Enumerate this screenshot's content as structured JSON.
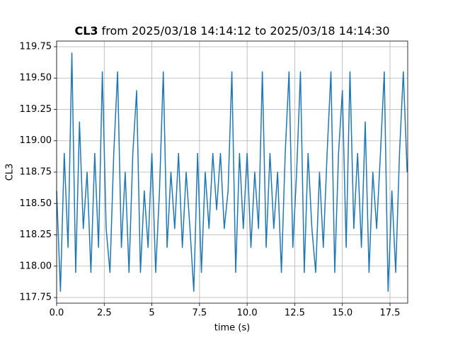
{
  "chart_data": {
    "type": "line",
    "title": "CL3",
    "title_suffix": "from 2025/03/18 14:14:12 to 2025/03/18 14:14:30",
    "xlabel": "time (s)",
    "ylabel": "CL3",
    "color": "#1f77b4",
    "grid": true,
    "xlim": [
      0,
      18.43
    ],
    "ylim": [
      117.705,
      119.795
    ],
    "xticks": [
      {
        "value": 0,
        "label": "0.0"
      },
      2.5,
      5,
      {
        "value": 7.5,
        "label": "7.5"
      },
      {
        "value": 10,
        "label": "10.0"
      },
      12.5,
      {
        "value": 15,
        "label": "15.0"
      },
      17.5
    ],
    "yticks": [
      117.75,
      {
        "value": 118,
        "label": "118.00"
      },
      118.25,
      {
        "value": 118.5,
        "label": "118.50"
      },
      118.75,
      {
        "value": 119,
        "label": "119.00"
      },
      119.25,
      {
        "value": 119.5,
        "label": "119.50"
      },
      119.75
    ],
    "x": [
      0,
      0.2,
      0.4,
      0.6,
      0.8,
      1,
      1.2,
      1.4,
      1.6,
      1.8,
      2,
      2.2,
      2.4,
      2.6,
      2.8,
      3,
      3.2,
      3.4,
      3.6,
      3.8,
      4,
      4.2,
      4.4,
      4.6,
      4.8,
      5,
      5.2,
      5.4,
      5.6,
      5.8,
      6,
      6.2,
      6.4,
      6.6,
      6.8,
      7,
      7.2,
      7.4,
      7.6,
      7.8,
      8,
      8.2,
      8.4,
      8.6,
      8.8,
      9,
      9.2,
      9.4,
      9.6,
      9.8,
      10,
      10.2,
      10.4,
      10.6,
      10.8,
      11,
      11.2,
      11.4,
      11.6,
      11.8,
      12,
      12.2,
      12.4,
      12.6,
      12.8,
      13,
      13.2,
      13.4,
      13.6,
      13.8,
      14,
      14.2,
      14.4,
      14.6,
      14.8,
      15,
      15.2,
      15.4,
      15.6,
      15.8,
      16,
      16.2,
      16.4,
      16.6,
      16.8,
      17,
      17.2,
      17.4,
      17.6,
      17.8,
      18,
      18.2,
      18.4
    ],
    "values": [
      118.6,
      117.8,
      118.9,
      118.15,
      119.7,
      117.95,
      119.15,
      118.3,
      118.75,
      117.95,
      118.9,
      118.15,
      119.55,
      118.3,
      117.95,
      118.9,
      119.55,
      118.15,
      118.75,
      117.95,
      118.9,
      119.4,
      117.95,
      118.6,
      118.15,
      118.9,
      117.95,
      118.6,
      119.55,
      118.15,
      118.75,
      118.3,
      118.9,
      118.15,
      118.75,
      118.3,
      117.8,
      118.9,
      117.95,
      118.75,
      118.3,
      118.9,
      118.45,
      118.9,
      118.3,
      118.6,
      119.55,
      117.95,
      118.9,
      118.3,
      118.9,
      118.15,
      118.75,
      118.3,
      119.55,
      118.15,
      118.9,
      118.3,
      118.75,
      117.95,
      118.9,
      119.55,
      118.15,
      118.75,
      119.55,
      117.95,
      118.9,
      118.3,
      117.95,
      118.75,
      118.15,
      118.9,
      119.55,
      117.95,
      118.9,
      119.4,
      118.15,
      119.55,
      118.3,
      118.9,
      118.15,
      119.15,
      117.95,
      118.75,
      118.3,
      118.9,
      119.55,
      117.8,
      118.6,
      117.95,
      118.9,
      119.55,
      118.75
    ]
  }
}
